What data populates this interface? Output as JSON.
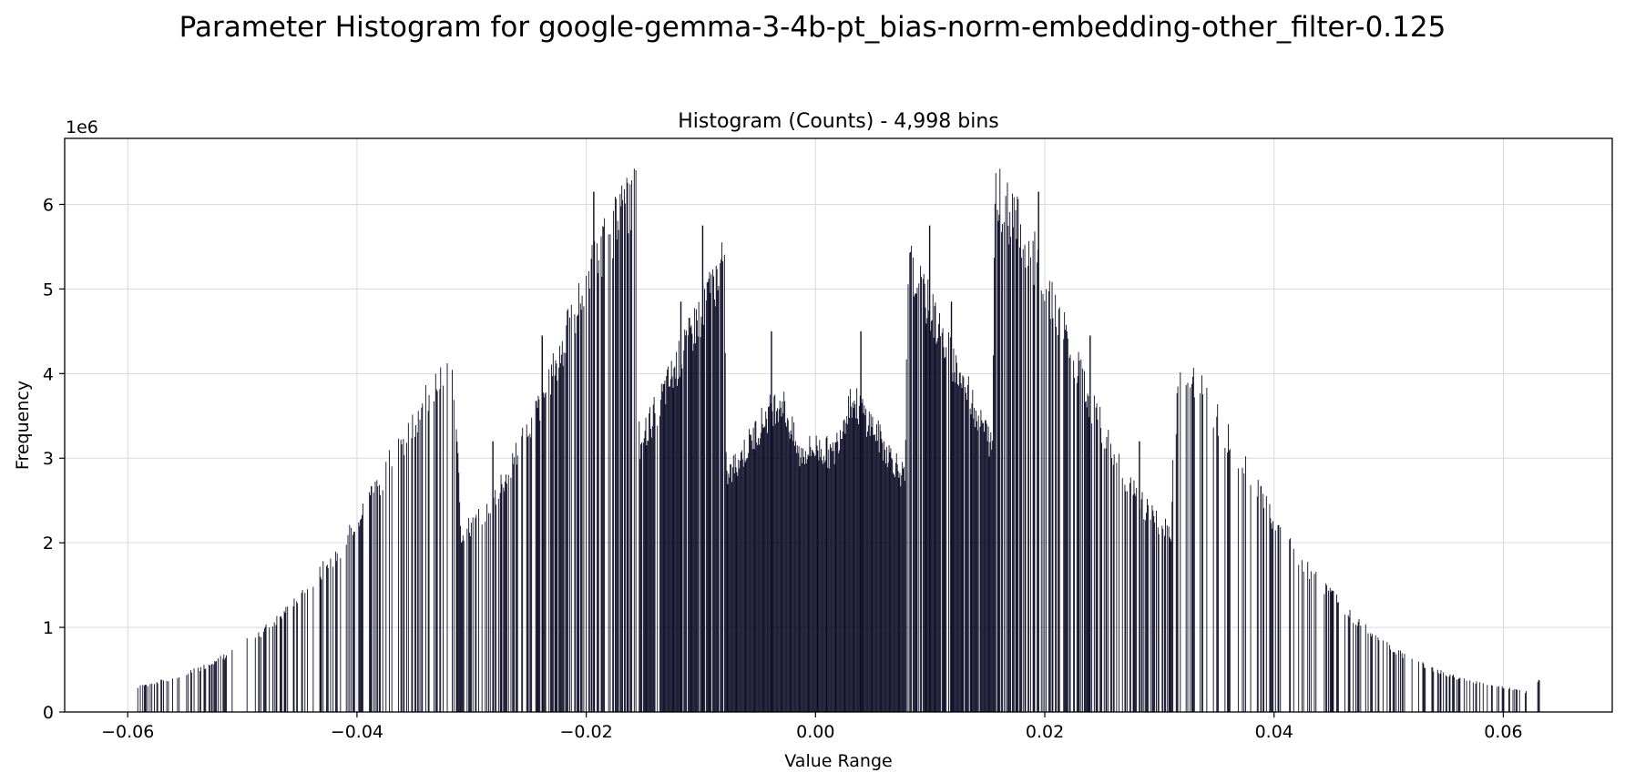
{
  "figure": {
    "suptitle": "Parameter Histogram for google-gemma-3-4b-pt_bias-norm-embedding-other_filter-0.125"
  },
  "chart_data": {
    "type": "bar",
    "title": "Histogram (Counts) - 4,998 bins",
    "xlabel": "Value Range",
    "ylabel": "Frequency",
    "y_offset_label": "1e6",
    "xlim": [
      -0.0655,
      0.0695
    ],
    "ylim": [
      0,
      6.78
    ],
    "x_ticks": [
      -0.06,
      -0.04,
      -0.02,
      0.0,
      0.02,
      0.04,
      0.06
    ],
    "x_tick_labels": [
      "−0.06",
      "−0.04",
      "−0.02",
      "0.00",
      "0.02",
      "0.04",
      "0.06"
    ],
    "y_ticks": [
      0,
      1,
      2,
      3,
      4,
      5,
      6
    ],
    "y_tick_labels": [
      "0",
      "1",
      "2",
      "3",
      "4",
      "5",
      "6"
    ],
    "grid": true,
    "bar_color": "#0b0b24",
    "bins": 4998,
    "bin_range": [
      -0.0593,
      0.0634
    ],
    "series": [
      {
        "x": [
          -0.0593,
          -0.0585,
          -0.058,
          -0.057,
          -0.056,
          -0.055,
          -0.054,
          -0.053,
          -0.052,
          -0.051,
          -0.05,
          -0.049,
          -0.048,
          -0.047,
          -0.046,
          -0.045,
          -0.044,
          -0.043,
          -0.042,
          -0.041,
          -0.04,
          -0.039,
          -0.038,
          -0.037,
          -0.036,
          -0.035,
          -0.034,
          -0.033,
          -0.0318,
          -0.0312,
          -0.031,
          -0.03,
          -0.029,
          -0.028,
          -0.027,
          -0.026,
          -0.025,
          -0.024,
          -0.023,
          -0.022,
          -0.021,
          -0.02,
          -0.019,
          -0.018,
          -0.017,
          -0.0162,
          -0.0156,
          -0.0154,
          -0.015,
          -0.014,
          -0.013,
          -0.012,
          -0.011,
          -0.01,
          -0.009,
          -0.008,
          -0.0078,
          -0.007,
          -0.006,
          -0.005,
          -0.004,
          -0.003,
          -0.002,
          -0.0015,
          -0.001,
          0.0,
          0.001,
          0.0015,
          0.002,
          0.003,
          0.004,
          0.005,
          0.006,
          0.007,
          0.0078,
          0.008,
          0.009,
          0.01,
          0.011,
          0.012,
          0.013,
          0.014,
          0.015,
          0.0154,
          0.0156,
          0.0162,
          0.017,
          0.018,
          0.019,
          0.02,
          0.021,
          0.022,
          0.023,
          0.024,
          0.025,
          0.026,
          0.027,
          0.028,
          0.029,
          0.03,
          0.031,
          0.0312,
          0.0318,
          0.033,
          0.034,
          0.035,
          0.036,
          0.037,
          0.038,
          0.039,
          0.04,
          0.041,
          0.042,
          0.043,
          0.044,
          0.045,
          0.046,
          0.047,
          0.048,
          0.049,
          0.05,
          0.051,
          0.052,
          0.053,
          0.054,
          0.055,
          0.056,
          0.057,
          0.058,
          0.059,
          0.06,
          0.061,
          0.062,
          0.0625,
          0.063,
          0.0634
        ],
        "values": [
          0.3,
          0.33,
          0.35,
          0.38,
          0.42,
          0.46,
          0.52,
          0.58,
          0.65,
          0.72,
          0.82,
          0.92,
          1.02,
          1.15,
          1.29,
          1.43,
          1.59,
          1.75,
          1.93,
          2.1,
          2.35,
          2.6,
          2.85,
          3.1,
          3.35,
          3.6,
          3.85,
          4.05,
          4.17,
          3.3,
          2.2,
          2.3,
          2.45,
          2.65,
          2.9,
          3.2,
          3.5,
          3.8,
          4.15,
          4.55,
          4.9,
          5.3,
          5.6,
          5.9,
          6.1,
          6.3,
          6.45,
          3.2,
          3.4,
          3.7,
          4.0,
          4.3,
          4.6,
          4.95,
          5.25,
          5.55,
          2.85,
          3.05,
          3.25,
          3.5,
          3.7,
          3.85,
          3.4,
          3.15,
          3.2,
          3.25,
          3.2,
          3.15,
          3.4,
          3.85,
          3.7,
          3.5,
          3.25,
          3.05,
          2.85,
          5.55,
          5.25,
          4.95,
          4.6,
          4.3,
          4.0,
          3.7,
          3.4,
          3.2,
          6.45,
          6.3,
          6.1,
          5.9,
          5.6,
          5.3,
          4.9,
          4.55,
          4.15,
          3.8,
          3.5,
          3.2,
          2.9,
          2.65,
          2.45,
          2.3,
          2.2,
          3.3,
          4.17,
          4.05,
          3.85,
          3.6,
          3.35,
          3.1,
          2.85,
          2.6,
          2.35,
          2.1,
          1.93,
          1.75,
          1.59,
          1.43,
          1.29,
          1.15,
          1.02,
          0.92,
          0.82,
          0.72,
          0.65,
          0.58,
          0.52,
          0.46,
          0.42,
          0.38,
          0.35,
          0.32,
          0.3,
          0.27,
          0.24,
          0.28,
          0.38,
          0.4
        ]
      }
    ],
    "spikes": {
      "x": [
        -0.0388,
        -0.0282,
        -0.0239,
        -0.0194,
        -0.0118,
        -0.0099,
        -0.0039,
        0.0039,
        0.0099,
        0.0118,
        0.0194,
        0.0239,
        0.0282,
        0.0388
      ],
      "values": [
        2.67,
        3.2,
        4.45,
        6.15,
        4.85,
        5.75,
        4.5,
        4.5,
        5.75,
        4.85,
        6.15,
        4.45,
        3.2,
        2.67
      ]
    }
  }
}
